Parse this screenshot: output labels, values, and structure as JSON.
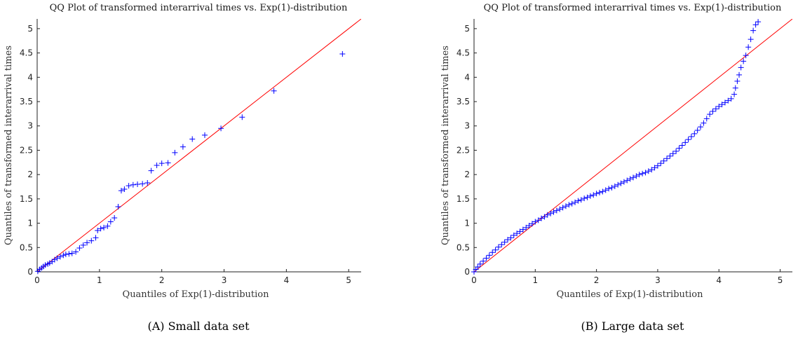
{
  "chart_data": [
    {
      "type": "scatter",
      "title": "QQ Plot of transformed interarrival times vs. Exp(1)-distribution",
      "xlabel": "Quantiles of Exp(1)-distribution",
      "ylabel": "Quantiles of transformed interarrival times",
      "caption": "(A) Small data set",
      "xlim": [
        0,
        5.2
      ],
      "ylim": [
        0,
        5.2
      ],
      "xticks": [
        "0",
        "1",
        "2",
        "3",
        "4",
        "5"
      ],
      "yticks": [
        "0",
        "0.5",
        "1",
        "1.5",
        "2",
        "2.5",
        "3",
        "3.5",
        "4",
        "4.5",
        "5"
      ],
      "marker_color": "#0000ff",
      "reference_line": {
        "color": "#ff0000",
        "from": [
          0,
          0
        ],
        "to": [
          5.2,
          5.2
        ]
      },
      "x": [
        0.01,
        0.04,
        0.07,
        0.1,
        0.13,
        0.17,
        0.2,
        0.24,
        0.28,
        0.32,
        0.37,
        0.42,
        0.46,
        0.51,
        0.56,
        0.62,
        0.68,
        0.74,
        0.8,
        0.87,
        0.94,
        0.97,
        1.02,
        1.07,
        1.13,
        1.18,
        1.24,
        1.3,
        1.35,
        1.4,
        1.47,
        1.54,
        1.61,
        1.69,
        1.77,
        1.83,
        1.92,
        2.0,
        2.1,
        2.21,
        2.34,
        2.49,
        2.69,
        2.95,
        3.29,
        3.8,
        4.9
      ],
      "y": [
        0.01,
        0.05,
        0.08,
        0.11,
        0.14,
        0.16,
        0.18,
        0.21,
        0.25,
        0.28,
        0.31,
        0.34,
        0.36,
        0.37,
        0.38,
        0.41,
        0.49,
        0.55,
        0.6,
        0.64,
        0.7,
        0.85,
        0.89,
        0.91,
        0.94,
        1.03,
        1.11,
        1.34,
        1.67,
        1.7,
        1.77,
        1.79,
        1.8,
        1.81,
        1.83,
        2.08,
        2.19,
        2.23,
        2.24,
        2.45,
        2.57,
        2.73,
        2.81,
        2.95,
        3.18,
        3.72,
        4.48
      ]
    },
    {
      "type": "scatter",
      "title": "QQ Plot of transformed interarrival times vs. Exp(1)-distribution",
      "xlabel": "Quantiles of Exp(1)-distribution",
      "ylabel": "Quantiles of transformed interarrival times",
      "caption": "(B) Large data set",
      "xlim": [
        0,
        5.2
      ],
      "ylim": [
        0,
        5.2
      ],
      "xticks": [
        "0",
        "1",
        "2",
        "3",
        "4",
        "5"
      ],
      "yticks": [
        "0",
        "0.5",
        "1",
        "1.5",
        "2",
        "2.5",
        "3",
        "3.5",
        "4",
        "4.5",
        "5"
      ],
      "marker_color": "#0000ff",
      "reference_line": {
        "color": "#ff0000",
        "from": [
          0,
          0
        ],
        "to": [
          5.2,
          5.2
        ]
      },
      "x": [
        0.0,
        0.03,
        0.06,
        0.1,
        0.15,
        0.2,
        0.25,
        0.3,
        0.35,
        0.4,
        0.45,
        0.5,
        0.55,
        0.6,
        0.65,
        0.7,
        0.75,
        0.8,
        0.85,
        0.9,
        0.95,
        1.0,
        1.05,
        1.1,
        1.15,
        1.2,
        1.25,
        1.3,
        1.35,
        1.4,
        1.45,
        1.5,
        1.55,
        1.6,
        1.65,
        1.7,
        1.75,
        1.8,
        1.85,
        1.9,
        1.95,
        2.0,
        2.05,
        2.1,
        2.15,
        2.2,
        2.25,
        2.3,
        2.35,
        2.4,
        2.45,
        2.5,
        2.55,
        2.6,
        2.65,
        2.7,
        2.75,
        2.8,
        2.85,
        2.9,
        2.95,
        3.0,
        3.05,
        3.1,
        3.15,
        3.2,
        3.25,
        3.3,
        3.35,
        3.4,
        3.45,
        3.5,
        3.55,
        3.6,
        3.65,
        3.7,
        3.75,
        3.8,
        3.85,
        3.9,
        3.95,
        4.0,
        4.05,
        4.1,
        4.15,
        4.2,
        4.25,
        4.27,
        4.3,
        4.33,
        4.36,
        4.4,
        4.44,
        4.48,
        4.52,
        4.56,
        4.6,
        4.64
      ],
      "y": [
        0.0,
        0.05,
        0.1,
        0.16,
        0.22,
        0.28,
        0.34,
        0.4,
        0.45,
        0.51,
        0.56,
        0.61,
        0.66,
        0.7,
        0.75,
        0.79,
        0.83,
        0.87,
        0.91,
        0.95,
        0.99,
        1.03,
        1.06,
        1.1,
        1.13,
        1.17,
        1.2,
        1.23,
        1.26,
        1.29,
        1.32,
        1.35,
        1.38,
        1.4,
        1.43,
        1.46,
        1.48,
        1.51,
        1.53,
        1.56,
        1.58,
        1.61,
        1.63,
        1.65,
        1.68,
        1.71,
        1.73,
        1.76,
        1.79,
        1.82,
        1.85,
        1.88,
        1.91,
        1.94,
        1.97,
        2.0,
        2.02,
        2.04,
        2.07,
        2.1,
        2.14,
        2.18,
        2.23,
        2.28,
        2.33,
        2.38,
        2.43,
        2.48,
        2.54,
        2.6,
        2.66,
        2.72,
        2.78,
        2.84,
        2.91,
        2.98,
        3.06,
        3.15,
        3.24,
        3.3,
        3.35,
        3.4,
        3.44,
        3.48,
        3.52,
        3.56,
        3.65,
        3.78,
        3.92,
        4.05,
        4.2,
        4.33,
        4.45,
        4.62,
        4.78,
        4.96,
        5.08,
        5.14
      ]
    }
  ]
}
